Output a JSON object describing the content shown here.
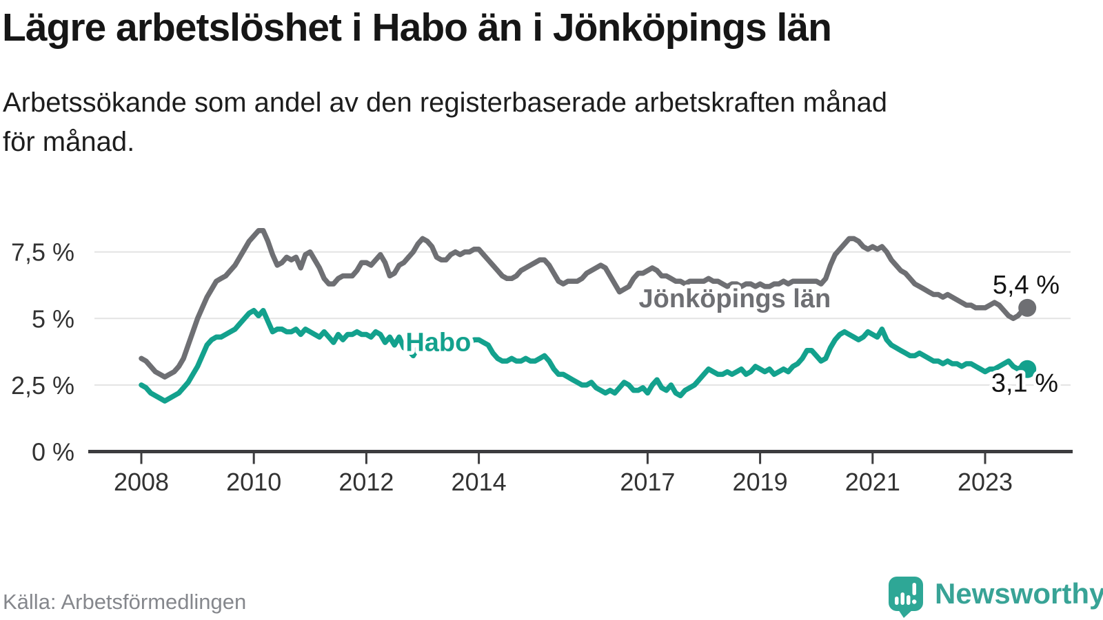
{
  "header": {
    "title": "Lägre arbetslöshet i Habo än i Jönköpings län",
    "subtitle_lines": [
      "Arbetssökande som andel av den registerbaserade arbetskraften månad",
      "för månad."
    ]
  },
  "footer": {
    "source": "Källa: Arbetsförmedlingen",
    "brand": "Newsworthy"
  },
  "chart_data": {
    "type": "line",
    "title": "Lägre arbetslöshet i Habo än i Jönköpings län",
    "x_unit": "month",
    "x_start": "2008-01",
    "x_end": "2023-10",
    "ylim": [
      0,
      8.6
    ],
    "grid": true,
    "colors": {
      "grid": "#e3e3e3",
      "axis": "#3c3c3e",
      "tick_text": "#323232",
      "value_text": "#141414",
      "habo": "#13a18d",
      "jonkopings_lan": "#6e6f73",
      "brand_teal": "#2ea796"
    },
    "y_ticks": [
      {
        "value": 0,
        "label": "0 %"
      },
      {
        "value": 2.5,
        "label": "2,5 %"
      },
      {
        "value": 5,
        "label": "5 %"
      },
      {
        "value": 7.5,
        "label": "7,5 %"
      }
    ],
    "x_ticks": [
      {
        "year": 2008,
        "label": "2008"
      },
      {
        "year": 2010,
        "label": "2010"
      },
      {
        "year": 2012,
        "label": "2012"
      },
      {
        "year": 2014,
        "label": "2014"
      },
      {
        "year": 2017,
        "label": "2017"
      },
      {
        "year": 2019,
        "label": "2019"
      },
      {
        "year": 2021,
        "label": "2021"
      },
      {
        "year": 2023,
        "label": "2023"
      }
    ],
    "series": [
      {
        "id": "jonkopings-lan",
        "name": "Jönköpings län",
        "color": "#6e6f73",
        "end_label": "5,4 %",
        "end_value": 5.4,
        "label_side": "above",
        "label_at": {
          "year": 2018.55,
          "value": 5.42
        },
        "values": [
          3.5,
          3.4,
          3.2,
          3.0,
          2.9,
          2.8,
          2.9,
          3.0,
          3.2,
          3.5,
          4.0,
          4.5,
          5.0,
          5.4,
          5.8,
          6.1,
          6.4,
          6.5,
          6.6,
          6.8,
          7.0,
          7.3,
          7.6,
          7.9,
          8.1,
          8.3,
          8.3,
          7.9,
          7.4,
          7.0,
          7.1,
          7.3,
          7.2,
          7.3,
          6.9,
          7.4,
          7.5,
          7.2,
          6.9,
          6.5,
          6.3,
          6.3,
          6.5,
          6.6,
          6.6,
          6.6,
          6.8,
          7.1,
          7.1,
          7.0,
          7.2,
          7.4,
          7.1,
          6.6,
          6.7,
          7.0,
          7.1,
          7.3,
          7.5,
          7.8,
          8.0,
          7.9,
          7.7,
          7.3,
          7.2,
          7.2,
          7.4,
          7.5,
          7.4,
          7.5,
          7.5,
          7.6,
          7.6,
          7.4,
          7.2,
          7.0,
          6.8,
          6.6,
          6.5,
          6.5,
          6.6,
          6.8,
          6.9,
          7.0,
          7.1,
          7.2,
          7.2,
          7.0,
          6.7,
          6.4,
          6.3,
          6.4,
          6.4,
          6.4,
          6.5,
          6.7,
          6.8,
          6.9,
          7.0,
          6.9,
          6.6,
          6.3,
          6.0,
          6.1,
          6.2,
          6.5,
          6.7,
          6.7,
          6.8,
          6.9,
          6.8,
          6.6,
          6.6,
          6.5,
          6.4,
          6.4,
          6.3,
          6.4,
          6.4,
          6.4,
          6.4,
          6.5,
          6.4,
          6.4,
          6.3,
          6.2,
          6.3,
          6.3,
          6.2,
          6.3,
          6.3,
          6.2,
          6.3,
          6.2,
          6.2,
          6.3,
          6.3,
          6.4,
          6.3,
          6.4,
          6.4,
          6.4,
          6.4,
          6.4,
          6.4,
          6.3,
          6.5,
          7.0,
          7.4,
          7.6,
          7.8,
          8.0,
          8.0,
          7.9,
          7.7,
          7.6,
          7.7,
          7.6,
          7.7,
          7.5,
          7.2,
          7.0,
          6.8,
          6.7,
          6.5,
          6.3,
          6.2,
          6.1,
          6.0,
          5.9,
          5.9,
          5.8,
          5.9,
          5.8,
          5.7,
          5.6,
          5.5,
          5.5,
          5.4,
          5.4,
          5.4,
          5.5,
          5.6,
          5.5,
          5.3,
          5.1,
          5.0,
          5.1,
          5.3,
          5.4
        ]
      },
      {
        "id": "habo",
        "name": "Habo",
        "color": "#13a18d",
        "end_label": "3,1 %",
        "end_value": 3.1,
        "label_side": "below",
        "label_at": {
          "year": 2013.28,
          "value": 3.78
        },
        "values": [
          2.5,
          2.4,
          2.2,
          2.1,
          2.0,
          1.9,
          2.0,
          2.1,
          2.2,
          2.4,
          2.6,
          2.9,
          3.2,
          3.6,
          4.0,
          4.2,
          4.3,
          4.3,
          4.4,
          4.5,
          4.6,
          4.8,
          5.0,
          5.2,
          5.3,
          5.1,
          5.3,
          4.9,
          4.5,
          4.6,
          4.6,
          4.5,
          4.5,
          4.6,
          4.4,
          4.6,
          4.5,
          4.4,
          4.3,
          4.5,
          4.3,
          4.1,
          4.4,
          4.2,
          4.4,
          4.4,
          4.5,
          4.4,
          4.4,
          4.3,
          4.5,
          4.4,
          4.1,
          4.3,
          4.0,
          4.3,
          3.9,
          3.8,
          3.6,
          3.9,
          4.1,
          4.3,
          4.0,
          3.9,
          4.2,
          4.3,
          4.1,
          4.0,
          4.1,
          4.2,
          4.1,
          4.2,
          4.2,
          4.1,
          4.0,
          3.7,
          3.5,
          3.4,
          3.4,
          3.5,
          3.4,
          3.4,
          3.5,
          3.4,
          3.4,
          3.5,
          3.6,
          3.4,
          3.1,
          2.9,
          2.9,
          2.8,
          2.7,
          2.6,
          2.5,
          2.5,
          2.6,
          2.4,
          2.3,
          2.2,
          2.3,
          2.2,
          2.4,
          2.6,
          2.5,
          2.3,
          2.3,
          2.4,
          2.2,
          2.5,
          2.7,
          2.4,
          2.3,
          2.5,
          2.2,
          2.1,
          2.3,
          2.4,
          2.5,
          2.7,
          2.9,
          3.1,
          3.0,
          2.9,
          2.9,
          3.0,
          2.9,
          3.0,
          3.1,
          2.9,
          3.0,
          3.2,
          3.1,
          3.0,
          3.1,
          2.9,
          3.0,
          3.1,
          3.0,
          3.2,
          3.3,
          3.5,
          3.8,
          3.8,
          3.6,
          3.4,
          3.5,
          3.9,
          4.2,
          4.4,
          4.5,
          4.4,
          4.3,
          4.2,
          4.3,
          4.5,
          4.4,
          4.3,
          4.6,
          4.2,
          4.0,
          3.9,
          3.8,
          3.7,
          3.6,
          3.6,
          3.7,
          3.6,
          3.5,
          3.4,
          3.4,
          3.3,
          3.4,
          3.3,
          3.3,
          3.2,
          3.3,
          3.3,
          3.2,
          3.1,
          3.0,
          3.1,
          3.1,
          3.2,
          3.3,
          3.4,
          3.2,
          3.1,
          3.2,
          3.1
        ]
      }
    ]
  }
}
